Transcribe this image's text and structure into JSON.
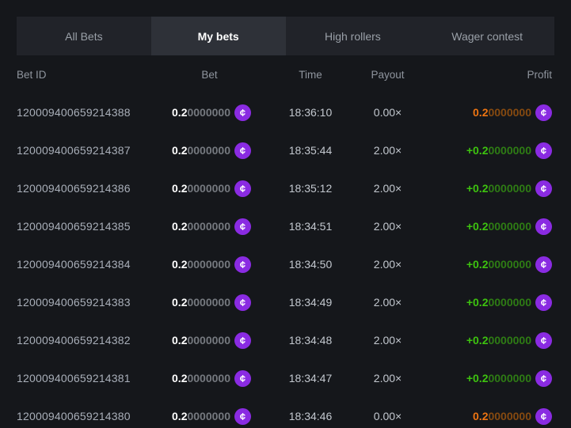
{
  "tabs": [
    {
      "label": "All Bets",
      "active": false
    },
    {
      "label": "My bets",
      "active": true
    },
    {
      "label": "High rollers",
      "active": false
    },
    {
      "label": "Wager contest",
      "active": false
    }
  ],
  "table": {
    "headers": [
      "Bet ID",
      "Bet",
      "Time",
      "Payout",
      "Profit"
    ],
    "rows": [
      {
        "bet_id": "120009400659214388",
        "bet_main": "0.2",
        "bet_zeros": "0000000",
        "time": "18:36:10",
        "payout": "0.00×",
        "profit_main": "0.2",
        "profit_zeros": "0000000",
        "profit_type": "loss"
      },
      {
        "bet_id": "120009400659214387",
        "bet_main": "0.2",
        "bet_zeros": "0000000",
        "time": "18:35:44",
        "payout": "2.00×",
        "profit_main": "+0.2",
        "profit_zeros": "0000000",
        "profit_type": "win"
      },
      {
        "bet_id": "120009400659214386",
        "bet_main": "0.2",
        "bet_zeros": "0000000",
        "time": "18:35:12",
        "payout": "2.00×",
        "profit_main": "+0.2",
        "profit_zeros": "0000000",
        "profit_type": "win"
      },
      {
        "bet_id": "120009400659214385",
        "bet_main": "0.2",
        "bet_zeros": "0000000",
        "time": "18:34:51",
        "payout": "2.00×",
        "profit_main": "+0.2",
        "profit_zeros": "0000000",
        "profit_type": "win"
      },
      {
        "bet_id": "120009400659214384",
        "bet_main": "0.2",
        "bet_zeros": "0000000",
        "time": "18:34:50",
        "payout": "2.00×",
        "profit_main": "+0.2",
        "profit_zeros": "0000000",
        "profit_type": "win"
      },
      {
        "bet_id": "120009400659214383",
        "bet_main": "0.2",
        "bet_zeros": "0000000",
        "time": "18:34:49",
        "payout": "2.00×",
        "profit_main": "+0.2",
        "profit_zeros": "0000000",
        "profit_type": "win"
      },
      {
        "bet_id": "120009400659214382",
        "bet_main": "0.2",
        "bet_zeros": "0000000",
        "time": "18:34:48",
        "payout": "2.00×",
        "profit_main": "+0.2",
        "profit_zeros": "0000000",
        "profit_type": "win"
      },
      {
        "bet_id": "120009400659214381",
        "bet_main": "0.2",
        "bet_zeros": "0000000",
        "time": "18:34:47",
        "payout": "2.00×",
        "profit_main": "+0.2",
        "profit_zeros": "0000000",
        "profit_type": "win"
      },
      {
        "bet_id": "120009400659214380",
        "bet_main": "0.2",
        "bet_zeros": "0000000",
        "time": "18:34:46",
        "payout": "0.00×",
        "profit_main": "0.2",
        "profit_zeros": "0000000",
        "profit_type": "loss"
      }
    ]
  },
  "icons": {
    "coin_glyph": "¢"
  },
  "colors": {
    "page_background": "#15171b",
    "tab_bar_background": "#212329",
    "active_tab_background": "#2e3138",
    "coin_purple": "#8a2be2",
    "win_green": "#3dc30f",
    "win_green_dim": "#2e7c14",
    "loss_orange": "#ee7512",
    "loss_orange_dim": "#864a10"
  }
}
